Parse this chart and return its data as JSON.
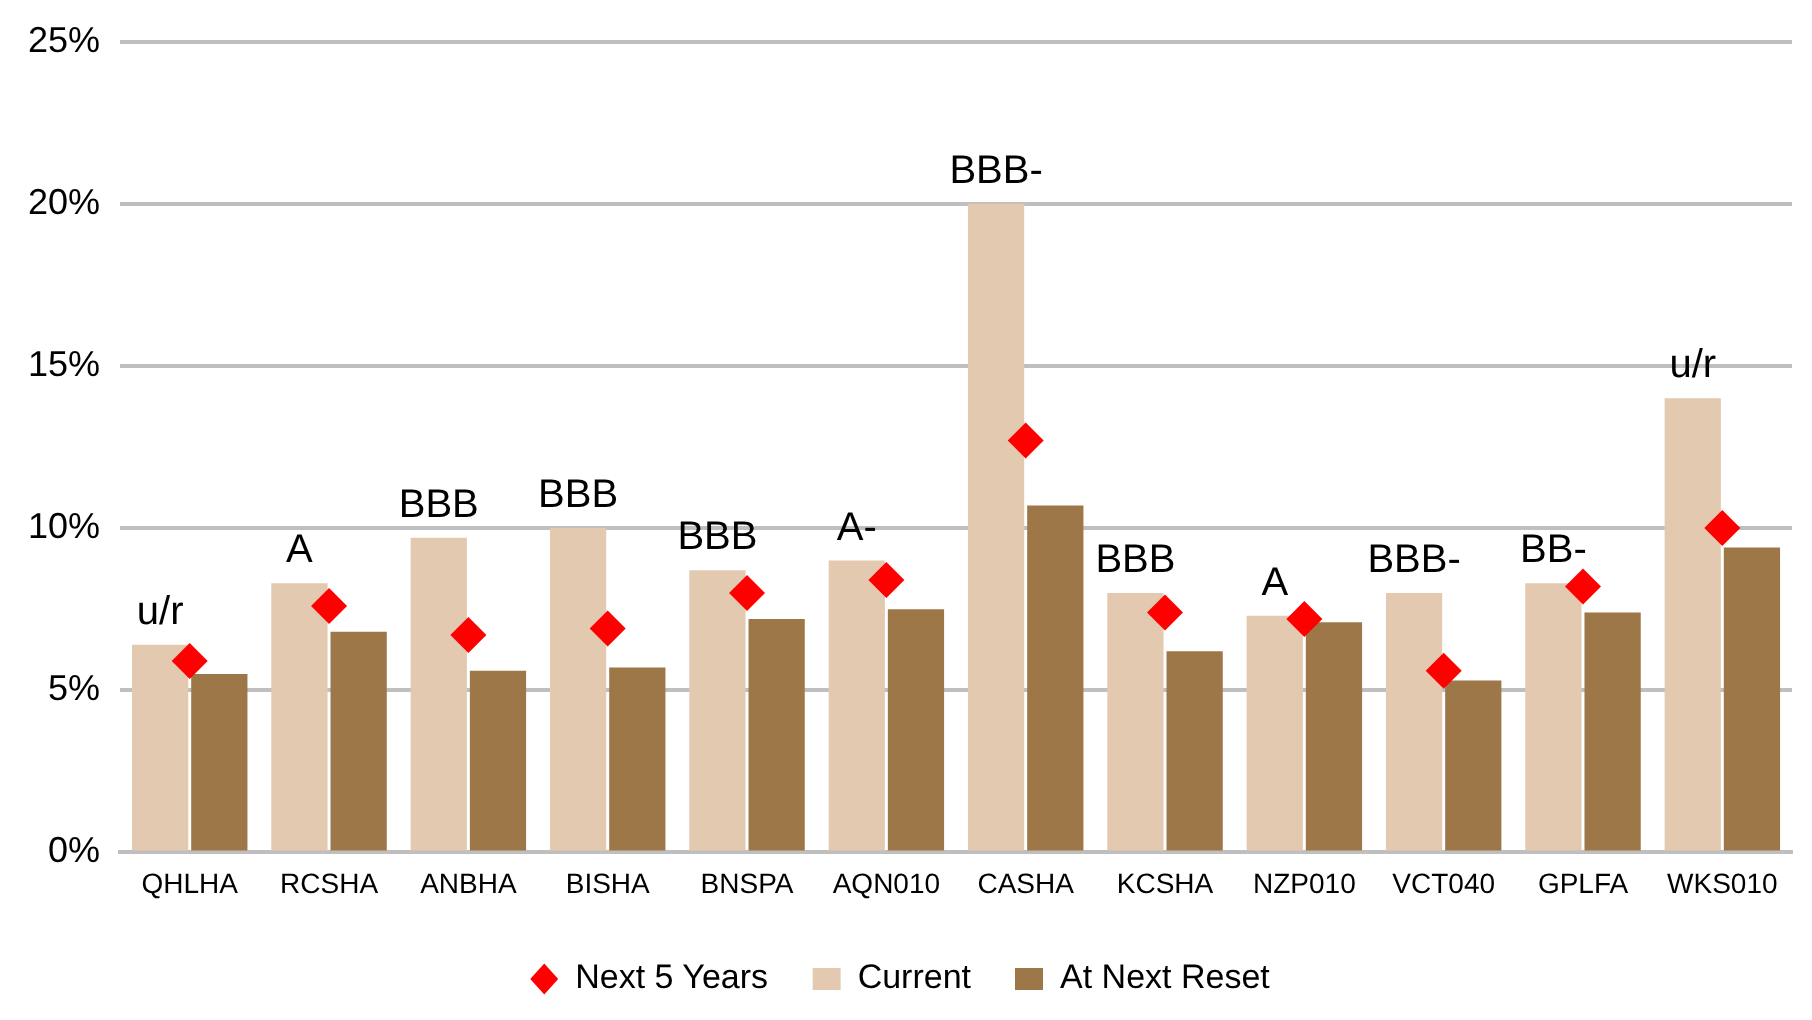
{
  "chart_data": {
    "type": "bar",
    "categories": [
      "QHLHA",
      "RCSHA",
      "ANBHA",
      "BISHA",
      "BNSPA",
      "AQN010",
      "CASHA",
      "KCSHA",
      "NZP010",
      "VCT040",
      "GPLFA",
      "WKS010"
    ],
    "series": [
      {
        "name": "Current",
        "color": "#e3c9b0",
        "values": [
          6.4,
          8.3,
          9.7,
          10.0,
          8.7,
          9.0,
          20.0,
          8.0,
          7.3,
          8.0,
          8.3,
          14.0
        ]
      },
      {
        "name": "At Next Reset",
        "color": "#9e7749",
        "values": [
          5.5,
          6.8,
          5.6,
          5.7,
          7.2,
          7.5,
          10.7,
          6.2,
          7.1,
          5.3,
          7.4,
          9.4
        ]
      },
      {
        "name": "Next 5 Years",
        "type": "scatter",
        "marker": "diamond",
        "color": "#ff0000",
        "x": [
          "QHLHA",
          "RCSHA",
          "ANBHA",
          "BISHA",
          "BNSPA",
          "AQN010",
          "CASHA",
          "KCSHA",
          "NZP010",
          "VCT040",
          "GPLFA",
          "WKS010"
        ],
        "values": [
          5.9,
          7.6,
          6.7,
          6.9,
          8.0,
          8.4,
          12.7,
          7.4,
          7.2,
          5.6,
          8.2,
          10.0
        ]
      }
    ],
    "ylim": [
      0,
      25
    ],
    "yticks": [
      {
        "value": 0,
        "label": "0%"
      },
      {
        "value": 5,
        "label": "5%"
      },
      {
        "value": 10,
        "label": "10%"
      },
      {
        "value": 15,
        "label": "15%"
      },
      {
        "value": 20,
        "label": "20%"
      },
      {
        "value": 25,
        "label": "25%"
      }
    ],
    "grid": "y",
    "legend": "bottom",
    "annotations": [
      {
        "text": "u/r",
        "x": "QHLHA",
        "y": 6.4
      },
      {
        "text": "A",
        "x": "RCSHA",
        "y": 8.3
      },
      {
        "text": "BBB",
        "x": "ANBHA",
        "y": 9.7
      },
      {
        "text": "BBB",
        "x": "BISHA",
        "y": 10.0
      },
      {
        "text": "BBB",
        "x": "BNSPA",
        "y": 8.7
      },
      {
        "text": "A-",
        "x": "AQN010",
        "y": 9.0
      },
      {
        "text": "BBB-",
        "x": "CASHA",
        "y": 20.0
      },
      {
        "text": "BBB",
        "x": "KCSHA",
        "y": 8.0
      },
      {
        "text": "A",
        "x": "NZP010",
        "y": 7.3
      },
      {
        "text": "BBB-",
        "x": "VCT040",
        "y": 8.0
      },
      {
        "text": "BB-",
        "x": "GPLFA",
        "y": 8.3
      },
      {
        "text": "u/r",
        "x": "WKS010",
        "y": 14.0
      }
    ]
  }
}
